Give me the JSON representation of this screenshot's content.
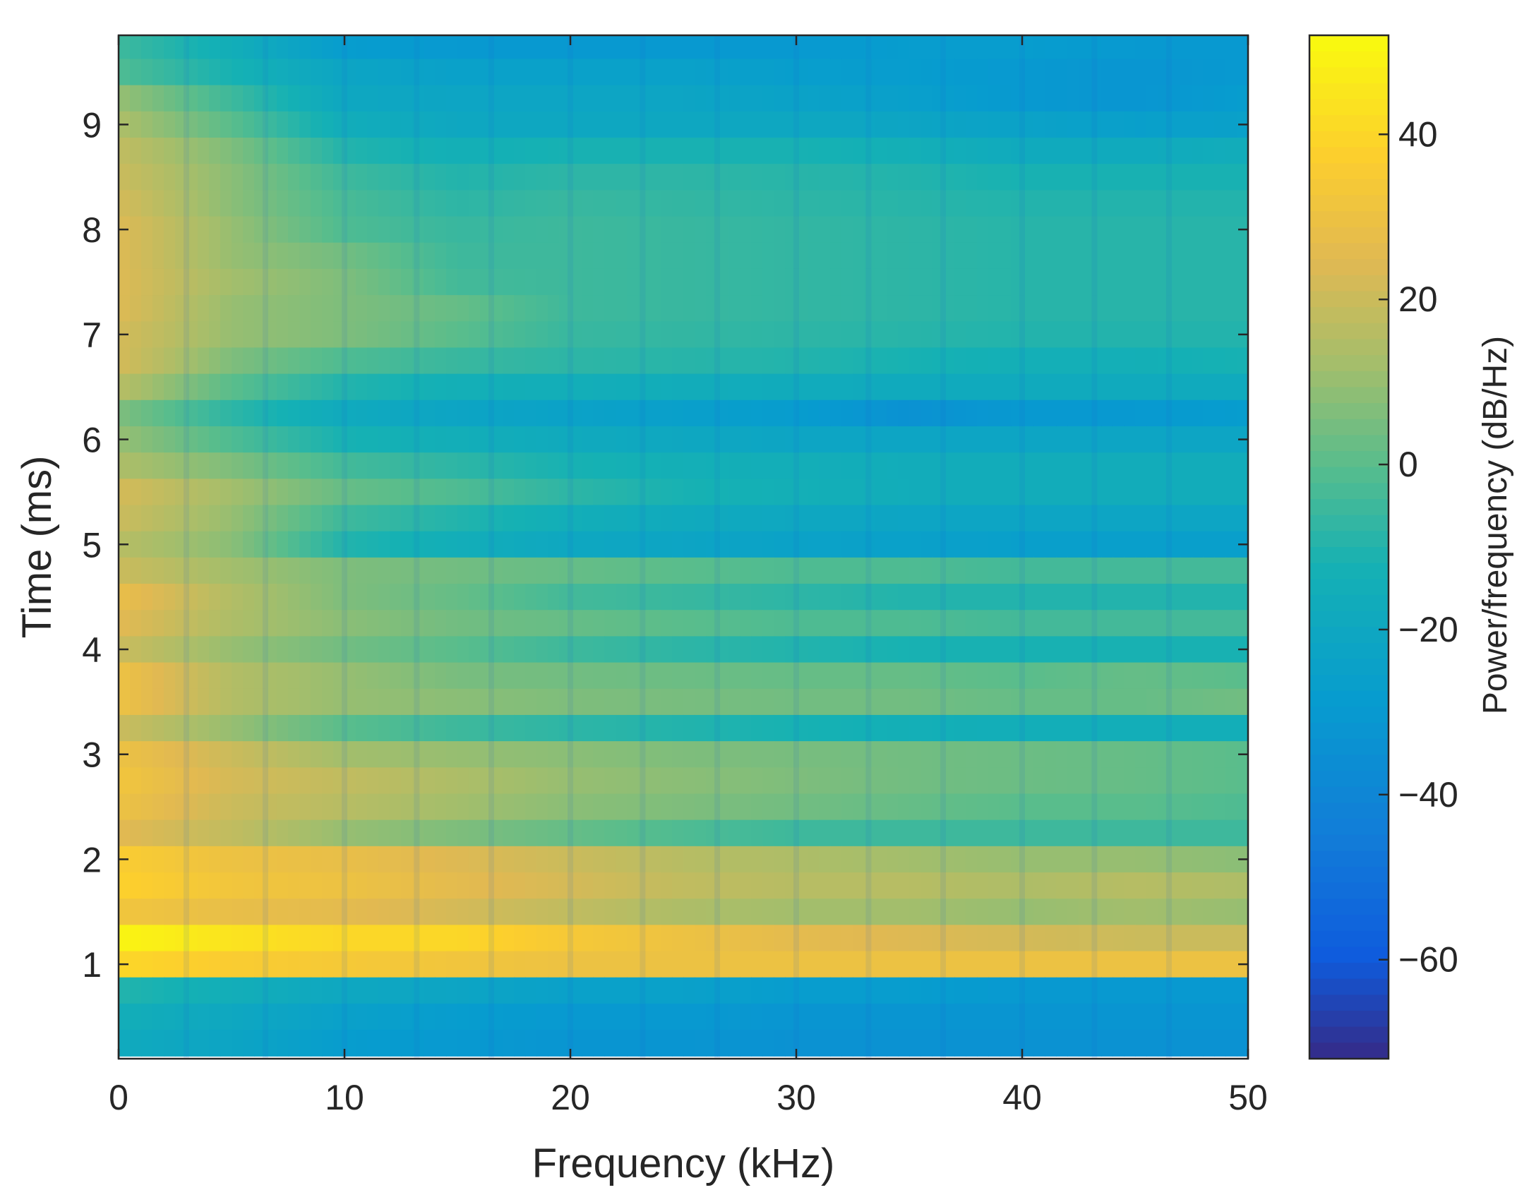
{
  "chart_data": {
    "type": "heatmap",
    "title": "",
    "xlabel": "Frequency (kHz)",
    "ylabel": "Time (ms)",
    "xlim": [
      0,
      50
    ],
    "ylim": [
      0.1,
      9.85
    ],
    "x_ticks": [
      0,
      10,
      20,
      30,
      40,
      50
    ],
    "x_tick_labels": [
      "0",
      "10",
      "20",
      "30",
      "40",
      "50"
    ],
    "y_ticks": [
      1,
      2,
      3,
      4,
      5,
      6,
      7,
      8,
      9
    ],
    "y_tick_labels": [
      "1",
      "2",
      "3",
      "4",
      "5",
      "6",
      "7",
      "8",
      "9"
    ],
    "colormap": "parula",
    "colorbar": {
      "label": "Power/frequency (dB/Hz)",
      "range": [
        -72,
        52
      ],
      "ticks": [
        40,
        20,
        0,
        -20,
        -40,
        -60
      ],
      "tick_labels": [
        "40",
        "20",
        "0",
        "−20",
        "−40",
        "−60"
      ]
    },
    "rows_time_ms": [
      9.75,
      9.5,
      9.25,
      9.0,
      8.75,
      8.5,
      8.25,
      8.0,
      7.75,
      7.5,
      7.25,
      7.0,
      6.75,
      6.5,
      6.25,
      6.0,
      5.75,
      5.5,
      5.25,
      5.0,
      4.75,
      4.5,
      4.25,
      4.0,
      3.75,
      3.5,
      3.25,
      3.0,
      2.75,
      2.5,
      2.25,
      2.0,
      1.75,
      1.5,
      1.25,
      1.0,
      0.75,
      0.5,
      0.25
    ],
    "cols_freq_khz": [
      0,
      5,
      10,
      15,
      20,
      25,
      30,
      35,
      40,
      45,
      50
    ],
    "power_db": [
      [
        -5,
        -15,
        -28,
        -30,
        -30,
        -30,
        -30,
        -28,
        -28,
        -30,
        -30
      ],
      [
        -2,
        -12,
        -22,
        -25,
        -25,
        -25,
        -27,
        -28,
        -30,
        -32,
        -30
      ],
      [
        10,
        -5,
        -20,
        -22,
        -22,
        -22,
        -24,
        -26,
        -30,
        -32,
        -28
      ],
      [
        14,
        0,
        -16,
        -20,
        -20,
        -20,
        -20,
        -22,
        -24,
        -26,
        -25
      ],
      [
        18,
        6,
        -10,
        -14,
        -12,
        -12,
        -12,
        -14,
        -18,
        -18,
        -16
      ],
      [
        20,
        8,
        -5,
        -10,
        -8,
        -8,
        -9,
        -10,
        -12,
        -12,
        -12
      ],
      [
        22,
        8,
        -3,
        -8,
        -6,
        -7,
        -8,
        -9,
        -10,
        -10,
        -10
      ],
      [
        24,
        10,
        -2,
        -6,
        -5,
        -6,
        -7,
        -8,
        -9,
        -9,
        -9
      ],
      [
        24,
        10,
        4,
        -5,
        -5,
        -6,
        -7,
        -8,
        -9,
        -9,
        -9
      ],
      [
        24,
        12,
        6,
        -4,
        -5,
        -6,
        -7,
        -8,
        -9,
        -9,
        -9
      ],
      [
        24,
        10,
        6,
        2,
        -5,
        -6,
        -7,
        -8,
        -9,
        -9,
        -9
      ],
      [
        22,
        10,
        6,
        0,
        -6,
        -7,
        -8,
        -9,
        -10,
        -10,
        -10
      ],
      [
        22,
        6,
        -2,
        -6,
        -8,
        -9,
        -10,
        -12,
        -14,
        -14,
        -12
      ],
      [
        16,
        0,
        -10,
        -14,
        -15,
        -16,
        -17,
        -18,
        -18,
        -18,
        -18
      ],
      [
        6,
        -8,
        -18,
        -22,
        -24,
        -26,
        -28,
        -34,
        -30,
        -30,
        -28
      ],
      [
        10,
        -2,
        -12,
        -15,
        -18,
        -20,
        -22,
        -22,
        -22,
        -22,
        -22
      ],
      [
        14,
        6,
        -4,
        -8,
        -12,
        -14,
        -15,
        -16,
        -16,
        -16,
        -16
      ],
      [
        22,
        12,
        2,
        -2,
        -8,
        -12,
        -14,
        -16,
        -16,
        -16,
        -16
      ],
      [
        20,
        10,
        -5,
        -10,
        -15,
        -18,
        -20,
        -22,
        -22,
        -22,
        -22
      ],
      [
        16,
        8,
        -10,
        -15,
        -20,
        -22,
        -24,
        -25,
        -26,
        -26,
        -26
      ],
      [
        20,
        12,
        6,
        4,
        2,
        0,
        -2,
        -2,
        -4,
        -4,
        -4
      ],
      [
        28,
        15,
        6,
        2,
        -4,
        -6,
        -8,
        -10,
        -10,
        -10,
        -10
      ],
      [
        25,
        14,
        8,
        4,
        2,
        0,
        -2,
        -2,
        -4,
        -4,
        -4
      ],
      [
        20,
        10,
        4,
        0,
        -5,
        -8,
        -10,
        -12,
        -12,
        -12,
        -12
      ],
      [
        30,
        15,
        10,
        5,
        4,
        3,
        2,
        2,
        0,
        2,
        0
      ],
      [
        30,
        15,
        10,
        8,
        6,
        5,
        4,
        4,
        2,
        2,
        4
      ],
      [
        20,
        10,
        0,
        -5,
        -8,
        -10,
        -12,
        -14,
        -15,
        -15,
        -15
      ],
      [
        30,
        20,
        12,
        10,
        8,
        6,
        5,
        4,
        3,
        2,
        0
      ],
      [
        32,
        22,
        18,
        14,
        10,
        8,
        6,
        4,
        3,
        2,
        0
      ],
      [
        30,
        20,
        16,
        12,
        8,
        6,
        4,
        2,
        0,
        0,
        -2
      ],
      [
        25,
        18,
        10,
        6,
        2,
        -2,
        -5,
        -5,
        -5,
        -5,
        -5
      ],
      [
        36,
        30,
        28,
        24,
        20,
        16,
        14,
        12,
        10,
        10,
        8
      ],
      [
        38,
        32,
        30,
        26,
        22,
        18,
        16,
        16,
        14,
        16,
        14
      ],
      [
        32,
        28,
        26,
        22,
        18,
        14,
        12,
        12,
        10,
        12,
        10
      ],
      [
        50,
        44,
        40,
        40,
        34,
        30,
        26,
        24,
        22,
        20,
        20
      ],
      [
        40,
        36,
        34,
        32,
        30,
        30,
        30,
        30,
        30,
        30,
        30
      ],
      [
        -10,
        -15,
        -20,
        -22,
        -25,
        -25,
        -28,
        -28,
        -30,
        -30,
        -30
      ],
      [
        -15,
        -20,
        -25,
        -28,
        -30,
        -30,
        -32,
        -32,
        -32,
        -32,
        -32
      ],
      [
        -18,
        -22,
        -28,
        -30,
        -32,
        -32,
        -34,
        -34,
        -34,
        -34,
        -34
      ]
    ]
  }
}
